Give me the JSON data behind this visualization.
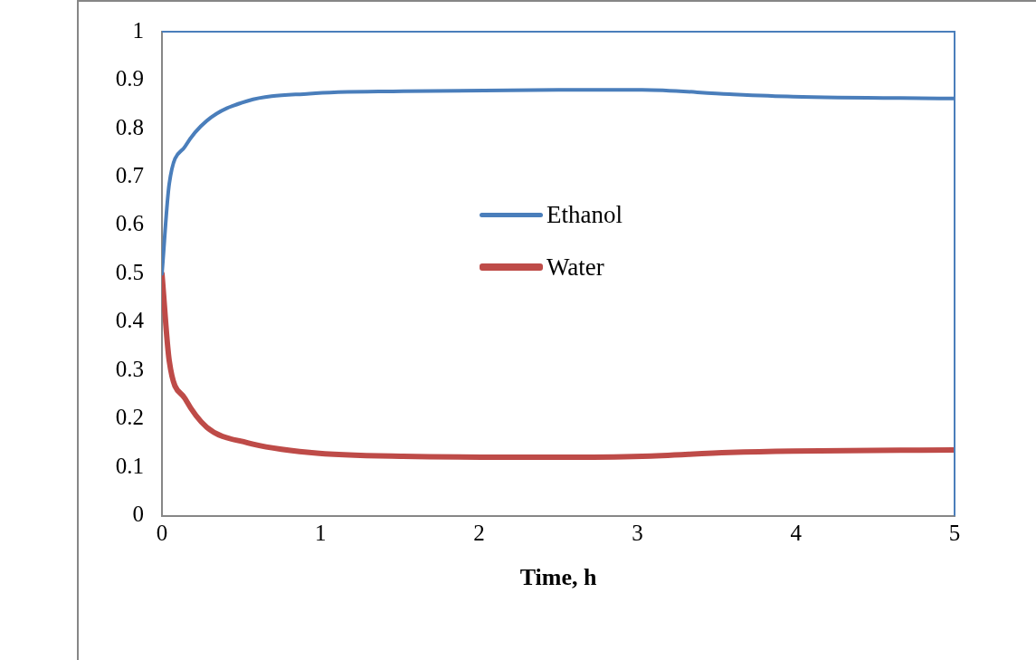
{
  "chart_data": {
    "type": "line",
    "xlabel": "Time, h",
    "xlim": [
      0,
      5
    ],
    "xticks": [
      0,
      1,
      2,
      3,
      4,
      5
    ],
    "ylim": [
      0,
      1
    ],
    "yticks": [
      0,
      0.1,
      0.2,
      0.3,
      0.4,
      0.5,
      0.6,
      0.7,
      0.8,
      0.9,
      1
    ],
    "grid": false,
    "legend": "center",
    "marker": "none",
    "line_style": "solid",
    "series": [
      {
        "name": "Ethanol",
        "color": "#4a7ebb",
        "x": [
          0,
          0.046,
          0.146,
          0.283,
          0.54,
          0.93,
          1.52,
          2.5,
          3.03,
          3.58,
          3.98,
          5
        ],
        "values": [
          0.5,
          0.686,
          0.763,
          0.816,
          0.857,
          0.872,
          0.877,
          0.88,
          0.88,
          0.871,
          0.866,
          0.862
        ]
      },
      {
        "name": "Water",
        "color": "#be4b48",
        "x": [
          0,
          0.046,
          0.146,
          0.283,
          0.54,
          0.93,
          1.52,
          2.5,
          3.03,
          3.58,
          3.98,
          5
        ],
        "values": [
          0.5,
          0.32,
          0.242,
          0.183,
          0.151,
          0.131,
          0.123,
          0.121,
          0.123,
          0.131,
          0.134,
          0.136
        ]
      }
    ]
  }
}
